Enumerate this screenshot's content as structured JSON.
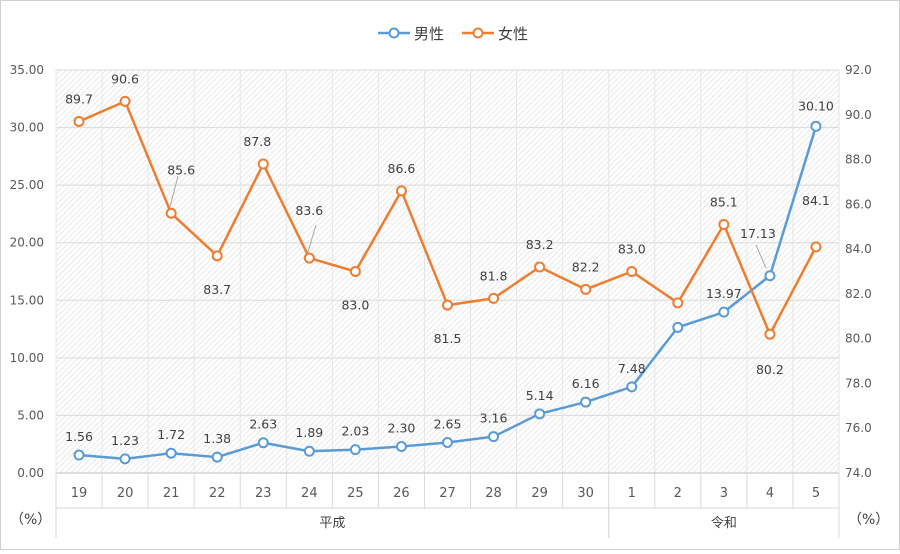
{
  "chart_data": {
    "type": "line",
    "legend_position": "top-center",
    "grid": true,
    "categories": [
      "19",
      "20",
      "21",
      "22",
      "23",
      "24",
      "25",
      "26",
      "27",
      "28",
      "29",
      "30",
      "1",
      "2",
      "3",
      "4",
      "5"
    ],
    "eras": [
      {
        "label": "平成",
        "start": 0,
        "end": 11
      },
      {
        "label": "令和",
        "start": 12,
        "end": 16
      }
    ],
    "left_axis": {
      "unit_label": "（%）",
      "range": [
        0,
        35
      ],
      "ticks": [
        "0.00",
        "5.00",
        "10.00",
        "15.00",
        "20.00",
        "25.00",
        "30.00",
        "35.00"
      ]
    },
    "right_axis": {
      "unit_label": "（%）",
      "range": [
        74,
        92
      ],
      "ticks": [
        "74.0",
        "76.0",
        "78.0",
        "80.0",
        "82.0",
        "84.0",
        "86.0",
        "88.0",
        "90.0",
        "92.0"
      ]
    },
    "series": [
      {
        "name": "男性",
        "axis": "left",
        "color": "#5B9BD5",
        "values": [
          1.56,
          1.23,
          1.72,
          1.38,
          2.63,
          1.89,
          2.03,
          2.3,
          2.65,
          3.16,
          5.14,
          6.16,
          7.48,
          12.65,
          13.97,
          17.13,
          30.1
        ],
        "labels": [
          "1.56",
          "1.23",
          "1.72",
          "1.38",
          "2.63",
          "1.89",
          "2.03",
          "2.30",
          "2.65",
          "3.16",
          "5.14",
          "6.16",
          "7.48",
          "",
          "13.97",
          "17.13",
          "30.10"
        ]
      },
      {
        "name": "女性",
        "axis": "right",
        "color": "#ED7D31",
        "values": [
          89.7,
          90.6,
          85.6,
          83.7,
          87.8,
          83.6,
          83.0,
          86.6,
          81.5,
          81.8,
          83.2,
          82.2,
          83.0,
          81.6,
          85.1,
          80.2,
          84.1
        ],
        "labels": [
          "89.7",
          "90.6",
          "85.6",
          "83.7",
          "87.8",
          "83.6",
          "83.0",
          "86.6",
          "81.5",
          "81.8",
          "83.2",
          "82.2",
          "83.0",
          "",
          "85.1",
          "80.2",
          "84.1"
        ]
      }
    ]
  }
}
